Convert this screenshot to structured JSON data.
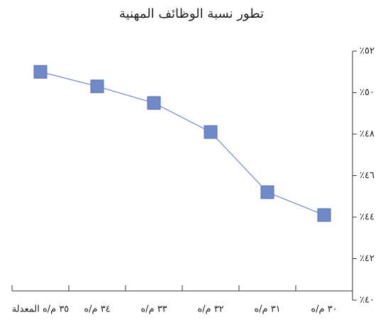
{
  "chart_data": {
    "type": "line",
    "title": "تطور نسبة الوظائف المهنية",
    "categories": [
      "٣٥ م/ه المعدلة",
      "٣٤ م/ه",
      "٣٣ م/ه",
      "٣٢ م/ه",
      "٣١ م/ه",
      "٣٠ م/ه"
    ],
    "series": [
      {
        "name": "نسبة الوظائف المهنية",
        "color": "#7189c9",
        "values": [
          51.0,
          50.3,
          49.5,
          48.1,
          45.2,
          44.1
        ]
      }
    ],
    "ylim": [
      40,
      52
    ],
    "yticks": [
      {
        "value": 40,
        "label": "٪٤٠"
      },
      {
        "value": 42,
        "label": "٪٤٢"
      },
      {
        "value": 44,
        "label": "٪٤٤"
      },
      {
        "value": 46,
        "label": "٪٤٦"
      },
      {
        "value": 48,
        "label": "٪٤٨"
      },
      {
        "value": 50,
        "label": "٪٥٠"
      },
      {
        "value": 52,
        "label": "٪٥٢"
      }
    ],
    "grid": false
  }
}
